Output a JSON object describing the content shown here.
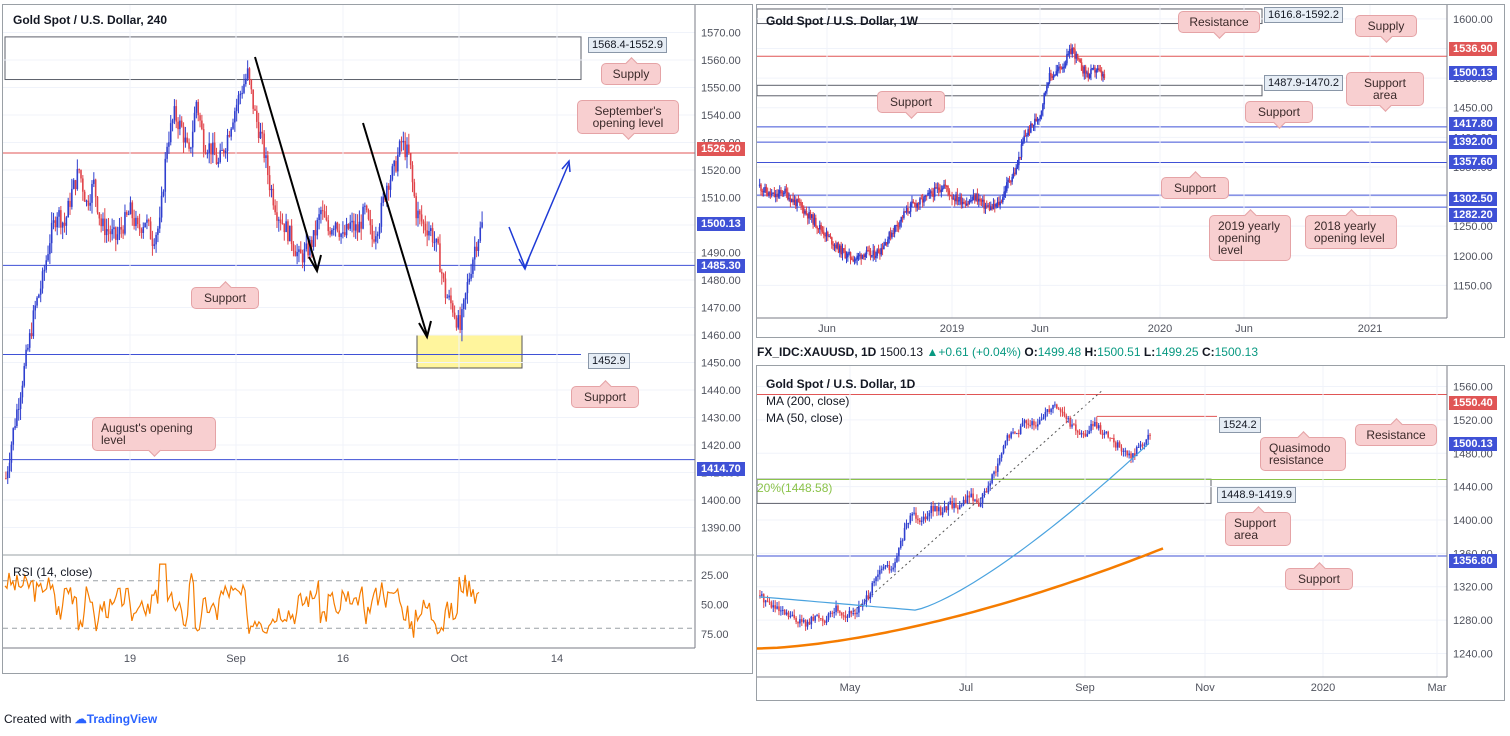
{
  "colors": {
    "bull": "#2f3fcf",
    "bear": "#e0434a",
    "support": "#3f51d6",
    "resistance": "#e05555",
    "rsi": "#f57c00",
    "ma200": "#f57c00",
    "ma50": "#4aa3df",
    "zone": "#fff59d",
    "arrow_blue": "#1e3ad6"
  },
  "panel_4h": {
    "title": "Gold Spot / U.S. Dollar, 240",
    "callouts": {
      "supply": "Supply",
      "september": "September's opening level",
      "support_mid": "Support",
      "support_low": "Support",
      "august": "August's opening level"
    },
    "zones": {
      "supply": "1568.4-1552.9",
      "demand": "1452.9"
    },
    "price_tags": {
      "t1526": "1526.20",
      "t1500": "1500.13",
      "t1485": "1485.30",
      "t1414": "1414.70"
    },
    "rsi_label": "RSI (14, close)",
    "rsi_ticks": [
      "75.00",
      "50.00",
      "25.00"
    ],
    "x_ticks": [
      "19",
      "Sep",
      "16",
      "Oct",
      "14"
    ]
  },
  "panel_weekly": {
    "title": "Gold Spot / U.S. Dollar, 1W",
    "callouts": {
      "resistance": "Resistance",
      "supply": "Supply",
      "support_area": "Support area",
      "support_a": "Support",
      "support_b": "Support",
      "support_c": "Support",
      "yearly_2019": "2019 yearly opening level",
      "yearly_2018": "2018 yearly opening level"
    },
    "zones": {
      "supply": "1616.8-1592.2",
      "support": "1487.9-1470.2"
    },
    "price_tags": {
      "t1536": "1536.90",
      "t1500": "1500.13",
      "t1417": "1417.80",
      "t1392": "1392.00",
      "t1357": "1357.60",
      "t1302": "1302.50",
      "t1282": "1282.20"
    },
    "x_ticks": [
      "Jun",
      "2019",
      "Jun",
      "2020",
      "Jun",
      "2021"
    ]
  },
  "info_bar": {
    "symbol": "FX_IDC:XAUUSD, 1D",
    "price": "1500.13",
    "change": "+0.61 (+0.04%)",
    "o_label": "O:",
    "o_value": "1499.48",
    "h_label": "H:",
    "h_value": "1500.51",
    "l_label": "L:",
    "l_value": "1499.25",
    "c_label": "C:",
    "c_value": "1500.13"
  },
  "panel_daily": {
    "title": "Gold Spot / U.S. Dollar, 1D",
    "ma200": "MA (200, close)",
    "ma50": "MA (50, close)",
    "fib_label": "20%(1448.58)",
    "callouts": {
      "resistance": "Resistance",
      "quasimodo": "Quasimodo resistance",
      "support_area": "Support area",
      "support": "Support"
    },
    "zones": {
      "qm": "1524.2",
      "support": "1448.9-1419.9"
    },
    "price_tags": {
      "t1550": "1550.40",
      "t1500": "1500.13",
      "t1356": "1356.80"
    },
    "x_ticks": [
      "May",
      "Jul",
      "Sep",
      "Nov",
      "2020",
      "Mar"
    ]
  },
  "footer": {
    "created_with": "Created with",
    "brand": "TradingView"
  },
  "chart_data": [
    {
      "type": "candlestick",
      "title": "Gold Spot / U.S. Dollar, 240",
      "ylim": [
        1380,
        1580
      ],
      "y_ticks": [
        1390,
        1400,
        1410,
        1420,
        1430,
        1440,
        1450,
        1460,
        1470,
        1480,
        1490,
        1500,
        1510,
        1520,
        1530,
        1540,
        1550,
        1560,
        1570
      ],
      "x_ticks": [
        "19",
        "Sep",
        "16",
        "Oct",
        "14"
      ],
      "close_path": [
        1408,
        1425,
        1440,
        1455,
        1470,
        1480,
        1495,
        1505,
        1500,
        1512,
        1520,
        1508,
        1515,
        1500,
        1498,
        1495,
        1500,
        1505,
        1498,
        1502,
        1495,
        1500,
        1530,
        1540,
        1535,
        1525,
        1545,
        1530,
        1528,
        1522,
        1530,
        1540,
        1548,
        1555,
        1540,
        1530,
        1515,
        1505,
        1500,
        1495,
        1488,
        1490,
        1495,
        1505,
        1498,
        1502,
        1495,
        1500,
        1498,
        1505,
        1495,
        1502,
        1515,
        1520,
        1530,
        1525,
        1505,
        1500,
        1498,
        1490,
        1475,
        1470,
        1462,
        1478,
        1492,
        1500
      ],
      "horizontal_levels": [
        1526.2,
        1500.13,
        1485.3,
        1452.9,
        1414.7
      ],
      "supply_zone": [
        1552.9,
        1568.4
      ],
      "demand_zone": [
        1448,
        1460
      ],
      "rsi": {
        "ylim": [
          15,
          90
        ],
        "levels": [
          70,
          30
        ],
        "y_ticks": [
          25,
          50,
          75
        ]
      }
    },
    {
      "type": "candlestick",
      "title": "Gold Spot / U.S. Dollar, 1W",
      "ylim": [
        1100,
        1610
      ],
      "y_ticks": [
        1150,
        1200,
        1250,
        1300,
        1350,
        1400,
        1450,
        1500,
        1550,
        1600
      ],
      "x_ticks": [
        "Jun",
        "2019",
        "Jun",
        "2020",
        "Jun",
        "2021"
      ],
      "close_path": [
        1318,
        1305,
        1300,
        1310,
        1295,
        1285,
        1270,
        1255,
        1240,
        1225,
        1210,
        1200,
        1195,
        1205,
        1200,
        1210,
        1230,
        1250,
        1270,
        1285,
        1290,
        1300,
        1310,
        1320,
        1300,
        1295,
        1290,
        1300,
        1285,
        1280,
        1290,
        1325,
        1345,
        1400,
        1420,
        1440,
        1500,
        1510,
        1525,
        1550,
        1520,
        1505,
        1515,
        1500
      ],
      "horizontal_levels": [
        1536.9,
        1500.13,
        1417.8,
        1392.0,
        1357.6,
        1302.5,
        1282.2
      ],
      "supply_zone": [
        1592.2,
        1616.8
      ],
      "support_zone": [
        1470.2,
        1487.9
      ]
    },
    {
      "type": "candlestick",
      "title": "Gold Spot / U.S. Dollar, 1D",
      "ylim": [
        1225,
        1575
      ],
      "y_ticks": [
        1240,
        1280,
        1320,
        1360,
        1400,
        1440,
        1480,
        1520,
        1560
      ],
      "x_ticks": [
        "May",
        "Jul",
        "Sep",
        "Nov",
        "2020",
        "Mar"
      ],
      "close_path": [
        1310,
        1300,
        1290,
        1285,
        1280,
        1275,
        1285,
        1280,
        1295,
        1285,
        1290,
        1300,
        1325,
        1345,
        1340,
        1380,
        1410,
        1400,
        1415,
        1410,
        1420,
        1415,
        1430,
        1420,
        1440,
        1465,
        1500,
        1505,
        1520,
        1510,
        1530,
        1540,
        1525,
        1510,
        1500,
        1515,
        1505,
        1495,
        1485,
        1475,
        1490,
        1500
      ],
      "horizontal_levels": [
        1550.4,
        1524.2,
        1500.13,
        1448.58,
        1356.8
      ],
      "support_zone": [
        1419.9,
        1448.9
      ],
      "moving_averages": [
        "MA (200, close)",
        "MA (50, close)"
      ]
    }
  ]
}
